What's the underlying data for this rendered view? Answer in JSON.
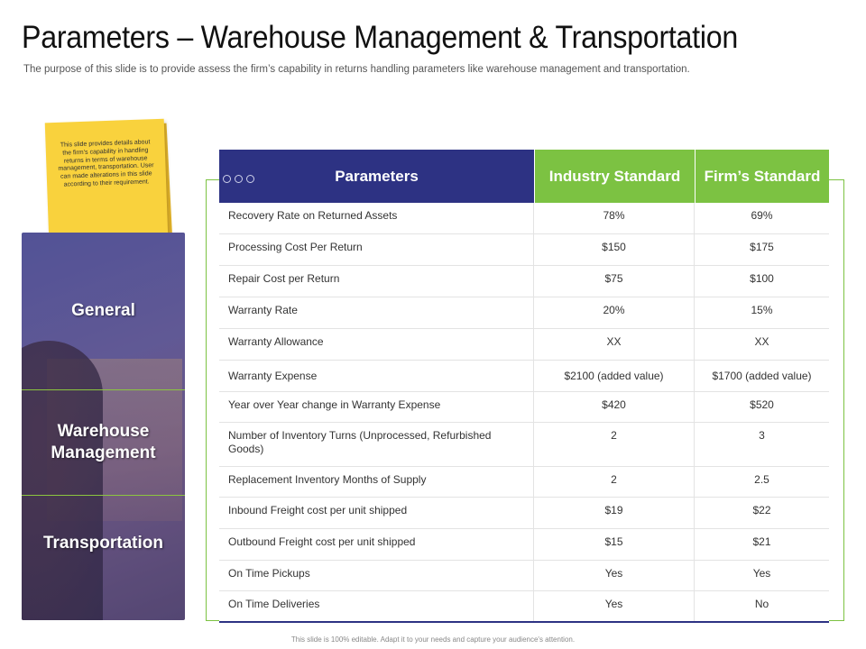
{
  "title": "Parameters – Warehouse Management & Transportation",
  "subtitle": "The purpose of this slide is to provide assess the firm’s capability in returns handling parameters like warehouse management and transportation.",
  "sticky_note": "This slide provides details about the firm’s capability in handling returns in terms of warehouse management, transportation. User can made alterations in this slide according to their requirement.",
  "sections": [
    {
      "label": "General"
    },
    {
      "label": "Warehouse Management"
    },
    {
      "label": "Transportation"
    }
  ],
  "table": {
    "headers": [
      "Parameters",
      "Industry Standard",
      "Firm’s Standard"
    ],
    "rows": [
      [
        "Recovery Rate on Returned Assets",
        "78%",
        "69%"
      ],
      [
        "Processing Cost Per Return",
        "$150",
        "$175"
      ],
      [
        "Repair Cost per Return",
        "$75",
        "$100"
      ],
      [
        "Warranty Rate",
        "20%",
        "15%"
      ],
      [
        "Warranty Allowance",
        "XX",
        "XX"
      ],
      [
        "Warranty Expense",
        "$2100 (added value)",
        "$1700 (added value)"
      ],
      [
        "Year over Year change in Warranty Expense",
        "$420",
        "$520"
      ],
      [
        "Number of Inventory Turns (Unprocessed, Refurbished Goods)",
        "2",
        "3"
      ],
      [
        "Replacement Inventory Months of Supply",
        "2",
        "2.5"
      ],
      [
        "Inbound Freight cost per unit shipped",
        "$19",
        "$22"
      ],
      [
        "Outbound Freight cost per unit shipped",
        "$15",
        "$21"
      ],
      [
        "On Time Pickups",
        "Yes",
        "Yes"
      ],
      [
        "On Time Deliveries",
        "Yes",
        "No"
      ]
    ]
  },
  "footer": "This slide is 100% editable. Adapt it to your needs and capture your audience's attention.",
  "colors": {
    "header_navy": "#2d3283",
    "header_green": "#7cc242",
    "sticky_yellow": "#f9d23d"
  }
}
